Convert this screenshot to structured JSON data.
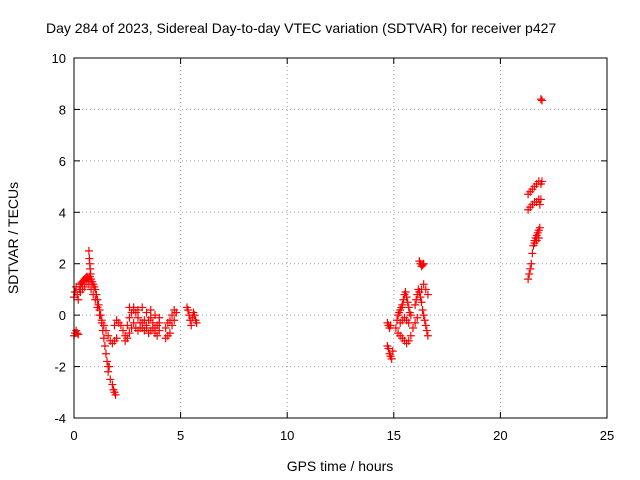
{
  "chart_data": {
    "type": "scatter",
    "title": "Day 284 of 2023, Sidereal Day-to-day VTEC variation (SDTVAR) for receiver p427",
    "xlabel": "GPS time / hours",
    "ylabel": "SDTVAR / TECUs",
    "xlim": [
      0,
      25
    ],
    "ylim": [
      -4,
      10
    ],
    "x_ticks": [
      0,
      5,
      10,
      15,
      20,
      25
    ],
    "y_ticks": [
      -4,
      -2,
      0,
      2,
      4,
      6,
      8,
      10
    ],
    "x_tick_labels": [
      "0",
      "5",
      "10",
      "15",
      "20",
      "25"
    ],
    "y_tick_labels": [
      "-4",
      "-2",
      "0",
      "2",
      "4",
      "6",
      "8",
      "10"
    ],
    "grid": true,
    "marker": "plus",
    "colors": {
      "series": "#ff0000",
      "grid": "#a0a0a0",
      "axes": "#000000"
    },
    "series": [
      {
        "values": [
          [
            0.0,
            -0.8
          ],
          [
            0.05,
            -0.7
          ],
          [
            0.1,
            -0.6
          ],
          [
            0.15,
            -0.7
          ],
          [
            0.2,
            -0.75
          ],
          [
            0.0,
            0.7
          ],
          [
            0.05,
            0.9
          ],
          [
            0.1,
            1.1
          ],
          [
            0.15,
            0.8
          ],
          [
            0.2,
            0.6
          ],
          [
            0.25,
            1.0
          ],
          [
            0.3,
            1.2
          ],
          [
            0.35,
            1.25
          ],
          [
            0.4,
            1.3
          ],
          [
            0.45,
            1.35
          ],
          [
            0.5,
            1.4
          ],
          [
            0.55,
            1.45
          ],
          [
            0.6,
            1.5
          ],
          [
            0.65,
            1.45
          ],
          [
            0.7,
            1.4
          ],
          [
            0.75,
            1.5
          ],
          [
            0.8,
            1.4
          ],
          [
            0.85,
            1.3
          ],
          [
            0.9,
            1.2
          ],
          [
            0.95,
            1.1
          ],
          [
            1.0,
            1.0
          ],
          [
            1.05,
            0.8
          ],
          [
            1.1,
            0.6
          ],
          [
            1.15,
            0.4
          ],
          [
            1.2,
            0.2
          ],
          [
            1.25,
            0.0
          ],
          [
            1.3,
            -0.3
          ],
          [
            1.35,
            -0.6
          ],
          [
            1.4,
            -0.9
          ],
          [
            1.45,
            -1.2
          ],
          [
            1.5,
            -1.5
          ],
          [
            1.55,
            -1.8
          ],
          [
            1.6,
            -2.0
          ],
          [
            1.65,
            -2.0
          ],
          [
            0.3,
            0.9
          ],
          [
            0.4,
            1.0
          ],
          [
            0.5,
            1.1
          ],
          [
            0.6,
            1.3
          ],
          [
            0.7,
            1.2
          ],
          [
            0.8,
            1.0
          ],
          [
            0.9,
            0.8
          ],
          [
            1.0,
            0.6
          ],
          [
            1.1,
            0.3
          ],
          [
            1.2,
            0.0
          ],
          [
            1.3,
            -0.2
          ],
          [
            1.4,
            -0.4
          ],
          [
            1.5,
            -0.6
          ],
          [
            1.6,
            -0.8
          ],
          [
            1.7,
            -1.0
          ],
          [
            1.8,
            -1.1
          ],
          [
            1.9,
            -1.0
          ],
          [
            2.0,
            -0.9
          ],
          [
            0.7,
            2.5
          ],
          [
            0.72,
            2.2
          ],
          [
            0.74,
            2.0
          ],
          [
            0.76,
            1.8
          ],
          [
            0.78,
            1.6
          ],
          [
            1.6,
            -2.2
          ],
          [
            1.7,
            -2.5
          ],
          [
            1.8,
            -2.7
          ],
          [
            1.85,
            -2.9
          ],
          [
            1.9,
            -3.0
          ],
          [
            1.95,
            -3.1
          ],
          [
            1.9,
            -0.4
          ],
          [
            2.0,
            -0.2
          ],
          [
            2.1,
            -0.3
          ],
          [
            2.2,
            -0.4
          ],
          [
            2.3,
            -0.6
          ],
          [
            2.4,
            -0.8
          ],
          [
            2.5,
            -0.4
          ],
          [
            2.6,
            -0.1
          ],
          [
            2.7,
            0.1
          ],
          [
            2.8,
            0.2
          ],
          [
            2.9,
            0.1
          ],
          [
            3.0,
            -0.1
          ],
          [
            3.1,
            -0.3
          ],
          [
            3.2,
            -0.5
          ],
          [
            3.3,
            -0.6
          ],
          [
            3.4,
            -0.4
          ],
          [
            3.5,
            -0.2
          ],
          [
            3.6,
            -0.1
          ],
          [
            3.7,
            -0.3
          ],
          [
            3.8,
            -0.5
          ],
          [
            3.9,
            -0.4
          ],
          [
            4.0,
            -0.3
          ],
          [
            2.4,
            -1.0
          ],
          [
            2.5,
            -0.9
          ],
          [
            2.6,
            -0.7
          ],
          [
            2.7,
            -0.5
          ],
          [
            2.8,
            -0.3
          ],
          [
            2.9,
            -0.5
          ],
          [
            3.0,
            -0.6
          ],
          [
            3.1,
            -0.5
          ],
          [
            3.2,
            -0.3
          ],
          [
            3.3,
            -0.2
          ],
          [
            3.4,
            -0.5
          ],
          [
            3.5,
            -0.7
          ],
          [
            3.6,
            -0.6
          ],
          [
            3.7,
            -0.5
          ],
          [
            3.8,
            -0.7
          ],
          [
            3.9,
            -0.8
          ],
          [
            4.0,
            -0.6
          ],
          [
            2.6,
            0.3
          ],
          [
            2.8,
            0.3
          ],
          [
            3.0,
            0.2
          ],
          [
            3.2,
            0.3
          ],
          [
            3.4,
            0.1
          ],
          [
            3.6,
            0.2
          ],
          [
            3.8,
            0.0
          ],
          [
            4.0,
            -0.1
          ],
          [
            4.3,
            -0.5
          ],
          [
            4.4,
            -0.3
          ],
          [
            4.5,
            -0.2
          ],
          [
            4.6,
            0.0
          ],
          [
            4.7,
            0.2
          ],
          [
            4.8,
            0.1
          ],
          [
            4.3,
            -0.9
          ],
          [
            4.4,
            -0.8
          ],
          [
            4.5,
            -0.7
          ],
          [
            4.6,
            -0.4
          ],
          [
            4.7,
            -0.2
          ],
          [
            5.3,
            0.3
          ],
          [
            5.35,
            0.2
          ],
          [
            5.4,
            0.0
          ],
          [
            5.45,
            -0.2
          ],
          [
            5.5,
            -0.4
          ],
          [
            5.55,
            -0.1
          ],
          [
            5.6,
            0.1
          ],
          [
            5.65,
            0.0
          ],
          [
            5.7,
            -0.2
          ],
          [
            5.75,
            -0.3
          ],
          [
            14.7,
            -0.3
          ],
          [
            14.75,
            -0.4
          ],
          [
            14.8,
            -0.5
          ],
          [
            14.85,
            -0.4
          ],
          [
            14.7,
            -1.2
          ],
          [
            14.75,
            -1.3
          ],
          [
            14.8,
            -1.5
          ],
          [
            14.85,
            -1.6
          ],
          [
            14.9,
            -1.7
          ],
          [
            14.95,
            -1.4
          ],
          [
            15.1,
            -0.5
          ],
          [
            15.15,
            -0.2
          ],
          [
            15.2,
            0.0
          ],
          [
            15.25,
            0.1
          ],
          [
            15.3,
            0.2
          ],
          [
            15.35,
            0.3
          ],
          [
            15.4,
            0.4
          ],
          [
            15.45,
            0.6
          ],
          [
            15.5,
            0.8
          ],
          [
            15.55,
            0.9
          ],
          [
            15.6,
            0.7
          ],
          [
            15.65,
            0.5
          ],
          [
            15.7,
            0.3
          ],
          [
            15.75,
            0.1
          ],
          [
            15.8,
            0.0
          ],
          [
            15.2,
            -0.7
          ],
          [
            15.3,
            -0.8
          ],
          [
            15.4,
            -0.9
          ],
          [
            15.5,
            -1.0
          ],
          [
            15.6,
            -1.1
          ],
          [
            15.7,
            -1.0
          ],
          [
            15.8,
            -0.8
          ],
          [
            15.9,
            -0.5
          ],
          [
            16.0,
            -0.3
          ],
          [
            16.1,
            -0.1
          ],
          [
            15.3,
            -0.3
          ],
          [
            15.4,
            -0.2
          ],
          [
            15.5,
            -0.1
          ],
          [
            15.6,
            -0.2
          ],
          [
            15.7,
            -0.3
          ],
          [
            16.0,
            0.4
          ],
          [
            16.05,
            0.6
          ],
          [
            16.1,
            0.8
          ],
          [
            16.15,
            1.0
          ],
          [
            16.2,
            0.9
          ],
          [
            16.25,
            0.7
          ],
          [
            16.3,
            0.5
          ],
          [
            16.35,
            0.2
          ],
          [
            16.4,
            0.0
          ],
          [
            16.45,
            -0.2
          ],
          [
            16.5,
            -0.4
          ],
          [
            16.55,
            -0.6
          ],
          [
            16.6,
            -0.8
          ],
          [
            16.3,
            1.0
          ],
          [
            16.4,
            1.2
          ],
          [
            16.5,
            1.0
          ],
          [
            16.6,
            0.8
          ],
          [
            16.2,
            2.1
          ],
          [
            16.25,
            2.0
          ],
          [
            16.3,
            1.9
          ],
          [
            16.35,
            1.95
          ],
          [
            16.4,
            2.0
          ],
          [
            21.3,
            1.4
          ],
          [
            21.35,
            1.6
          ],
          [
            21.4,
            1.8
          ],
          [
            21.45,
            2.0
          ],
          [
            21.5,
            2.4
          ],
          [
            21.55,
            2.7
          ],
          [
            21.6,
            2.9
          ],
          [
            21.65,
            3.0
          ],
          [
            21.7,
            3.1
          ],
          [
            21.75,
            3.2
          ],
          [
            21.8,
            3.3
          ],
          [
            21.85,
            3.4
          ],
          [
            21.6,
            2.8
          ],
          [
            21.7,
            2.9
          ],
          [
            21.8,
            3.0
          ],
          [
            21.3,
            4.1
          ],
          [
            21.4,
            4.2
          ],
          [
            21.5,
            4.3
          ],
          [
            21.6,
            4.4
          ],
          [
            21.7,
            4.4
          ],
          [
            21.8,
            4.5
          ],
          [
            21.85,
            4.3
          ],
          [
            21.9,
            4.5
          ],
          [
            21.3,
            4.7
          ],
          [
            21.4,
            4.8
          ],
          [
            21.5,
            4.9
          ],
          [
            21.6,
            5.0
          ],
          [
            21.7,
            5.1
          ],
          [
            21.8,
            5.2
          ],
          [
            21.9,
            5.1
          ],
          [
            21.95,
            5.2
          ],
          [
            21.9,
            8.4
          ],
          [
            21.95,
            8.35
          ]
        ]
      }
    ]
  }
}
